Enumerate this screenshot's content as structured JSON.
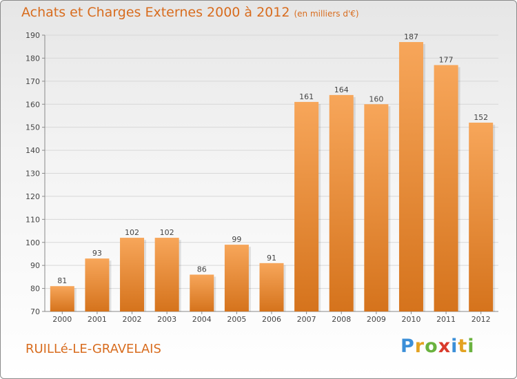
{
  "header": {
    "title": "Achats et Charges Externes 2000 à 2012",
    "unit": "(en milliers d'€)"
  },
  "footer": {
    "commune": "RUILLé-LE-GRAVELAIS",
    "logo": [
      "P",
      "r",
      "o",
      "x",
      "i",
      "t",
      "i"
    ]
  },
  "colors": {
    "bar_top": "#f7a65a",
    "bar_bottom": "#d5731c",
    "title": "#d86c1e"
  },
  "chart_data": {
    "type": "bar",
    "categories": [
      "2000",
      "2001",
      "2002",
      "2003",
      "2004",
      "2005",
      "2006",
      "2007",
      "2008",
      "2009",
      "2010",
      "2011",
      "2012"
    ],
    "values": [
      81,
      93,
      102,
      102,
      86,
      99,
      91,
      161,
      164,
      160,
      187,
      177,
      152
    ],
    "ylim": [
      70,
      190
    ],
    "yticks": [
      70,
      80,
      90,
      100,
      110,
      120,
      130,
      140,
      150,
      160,
      170,
      180,
      190
    ],
    "grid": true
  }
}
